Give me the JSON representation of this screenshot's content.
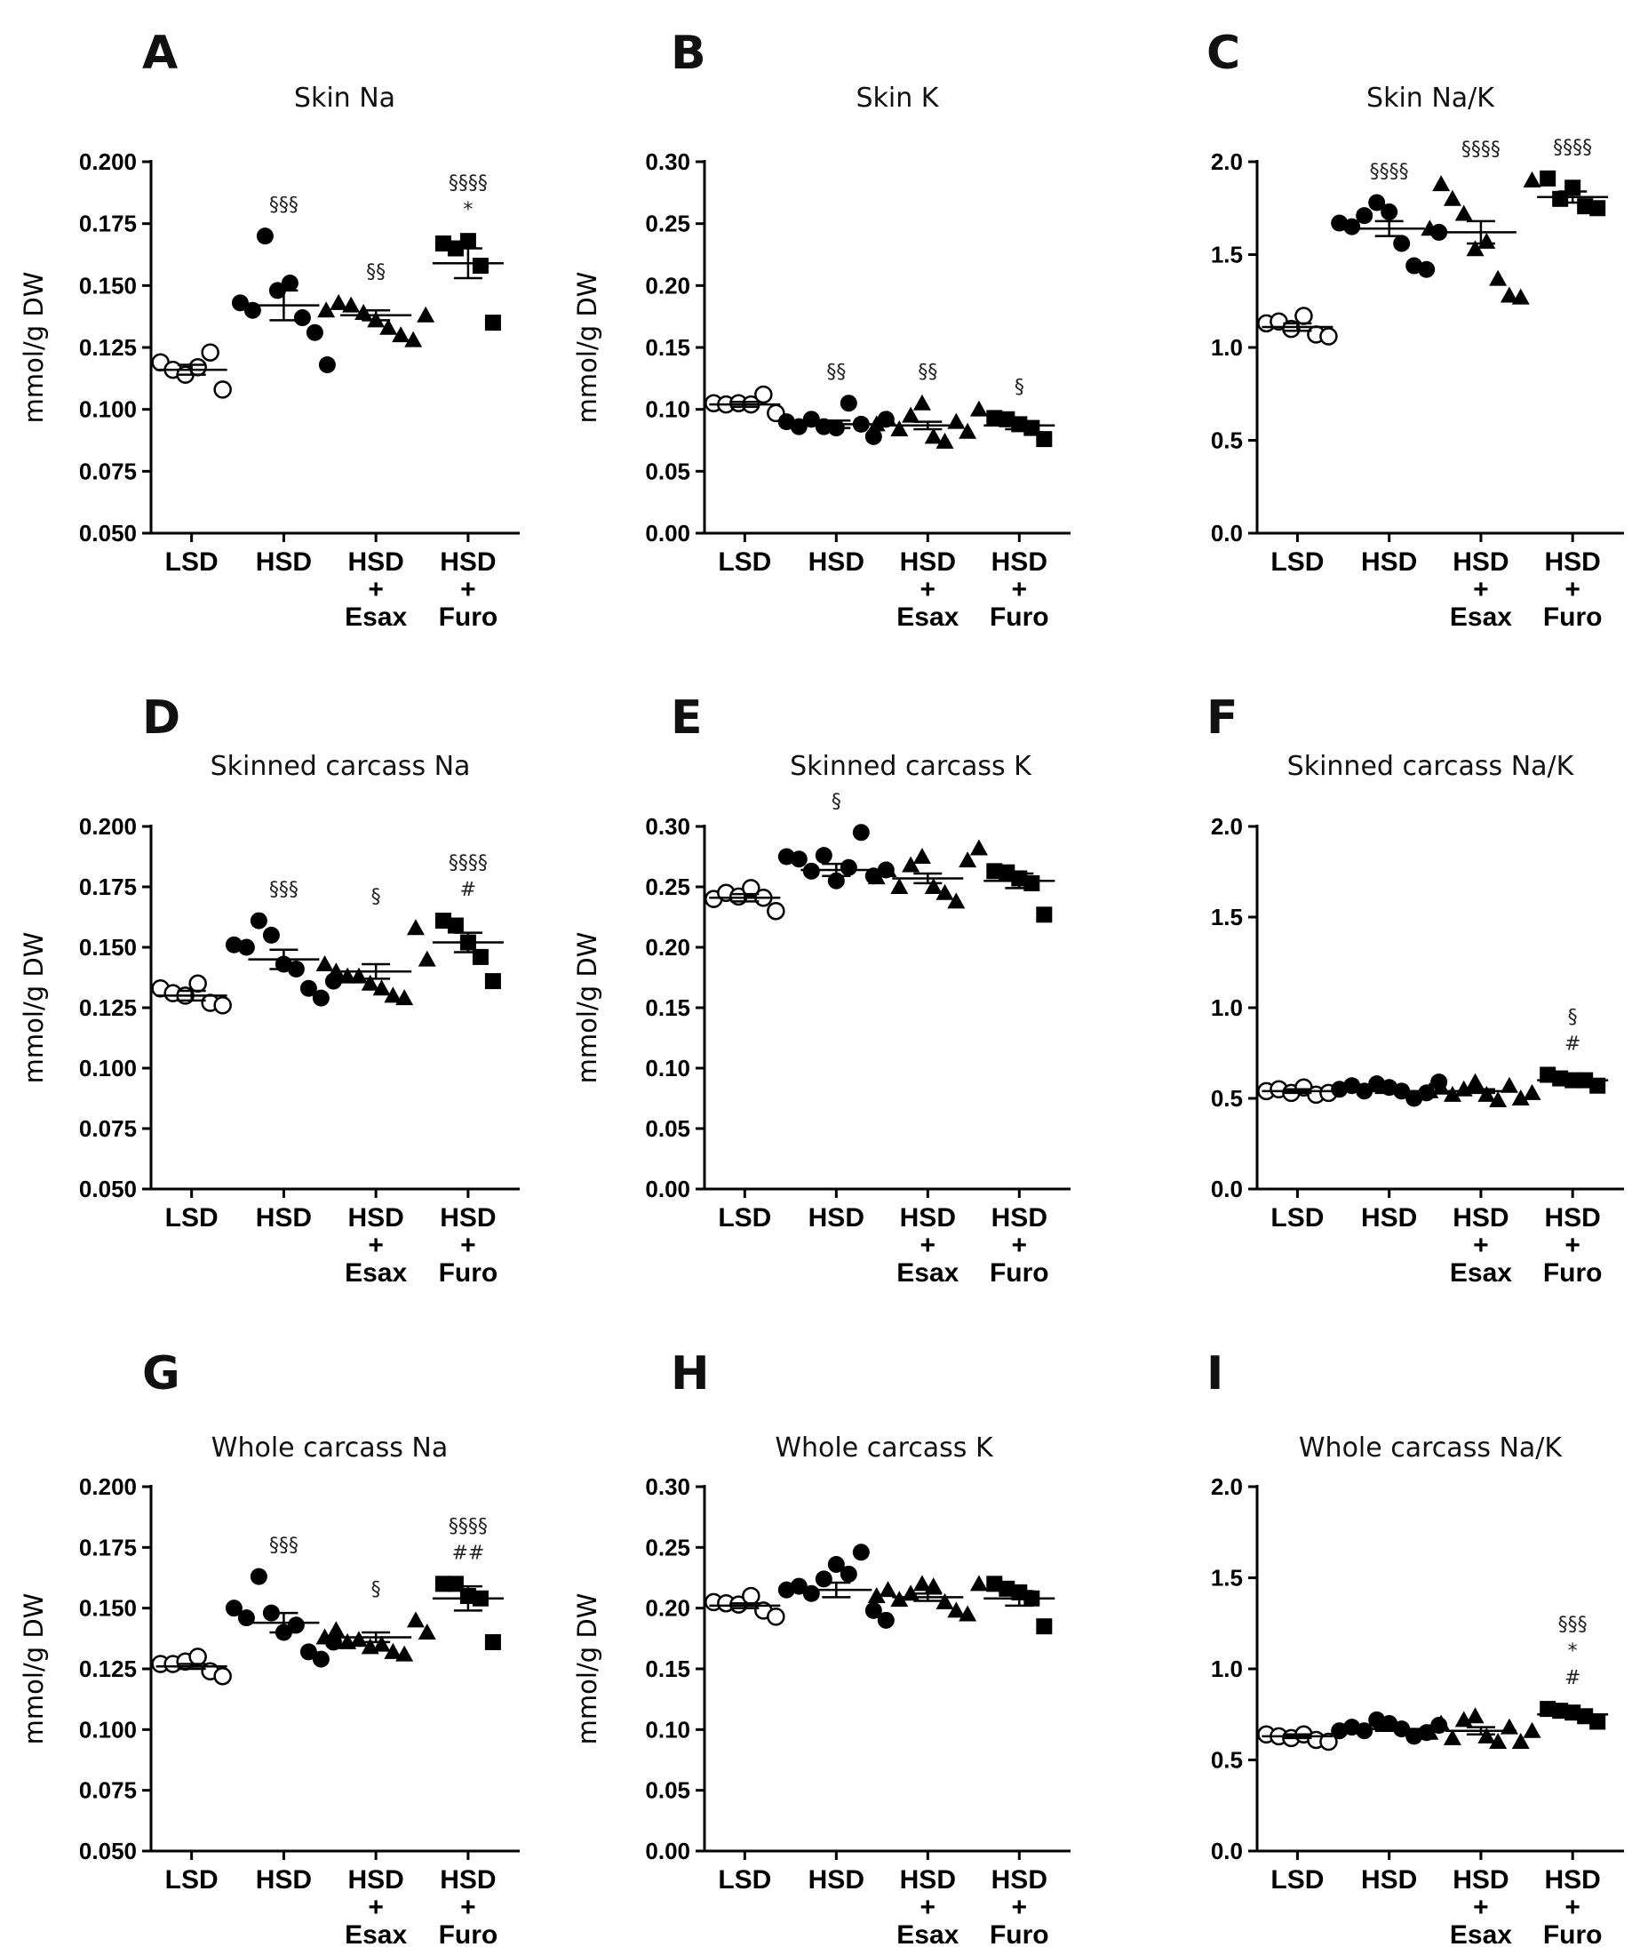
{
  "categories": [
    [
      "LSD"
    ],
    [
      "HSD"
    ],
    [
      "HSD",
      "+",
      "Esax"
    ],
    [
      "HSD",
      "+",
      "Furo"
    ]
  ],
  "chart_data": [
    {
      "panel": "A",
      "title": "Skin Na",
      "type": "scatter",
      "ylabel": "mmol/g DW",
      "ylim": [
        0.05,
        0.2
      ],
      "yticks": [
        "0.050",
        "0.075",
        "0.100",
        "0.125",
        "0.150",
        "0.175",
        "0.200"
      ],
      "groups": [
        {
          "points": [
            0.119,
            0.116,
            0.114,
            0.117,
            0.123,
            0.108
          ],
          "mean": 0.116,
          "sem": 0.002,
          "sig": []
        },
        {
          "points": [
            0.143,
            0.14,
            0.17,
            0.148,
            0.151,
            0.137,
            0.131,
            0.118
          ],
          "mean": 0.142,
          "sem": 0.006,
          "sig": [
            "§§§"
          ]
        },
        {
          "points": [
            0.14,
            0.143,
            0.142,
            0.139,
            0.136,
            0.133,
            0.13,
            0.128,
            0.138
          ],
          "mean": 0.138,
          "sem": 0.002,
          "sig": [
            "§§"
          ]
        },
        {
          "points": [
            0.167,
            0.165,
            0.168,
            0.158,
            0.135
          ],
          "mean": 0.159,
          "sem": 0.006,
          "sig": [
            "§§§§",
            "*"
          ]
        }
      ]
    },
    {
      "panel": "B",
      "title": "Skin K",
      "type": "scatter",
      "ylabel": "mmol/g DW",
      "ylim": [
        0,
        0.3
      ],
      "yticks": [
        "0.00",
        "0.05",
        "0.10",
        "0.15",
        "0.20",
        "0.25",
        "0.30"
      ],
      "groups": [
        {
          "points": [
            0.105,
            0.104,
            0.105,
            0.104,
            0.112,
            0.097
          ],
          "mean": 0.104,
          "sem": 0.002,
          "sig": []
        },
        {
          "points": [
            0.09,
            0.086,
            0.092,
            0.086,
            0.085,
            0.105,
            0.088,
            0.078,
            0.092
          ],
          "mean": 0.088,
          "sem": 0.003,
          "sig": [
            "§§"
          ]
        },
        {
          "points": [
            0.088,
            0.092,
            0.084,
            0.095,
            0.105,
            0.078,
            0.074,
            0.09,
            0.082,
            0.1
          ],
          "mean": 0.087,
          "sem": 0.003,
          "sig": [
            "§§"
          ]
        },
        {
          "points": [
            0.093,
            0.092,
            0.088,
            0.085,
            0.076
          ],
          "mean": 0.087,
          "sem": 0.003,
          "sig": [
            "§"
          ]
        }
      ]
    },
    {
      "panel": "C",
      "title": "Skin Na/K",
      "type": "scatter",
      "ylabel": "",
      "ylim": [
        0,
        2
      ],
      "yticks": [
        "0.0",
        "0.5",
        "1.0",
        "1.5",
        "2.0"
      ],
      "groups": [
        {
          "points": [
            1.13,
            1.14,
            1.1,
            1.17,
            1.07,
            1.06
          ],
          "mean": 1.11,
          "sem": 0.02,
          "sig": []
        },
        {
          "points": [
            1.67,
            1.65,
            1.71,
            1.78,
            1.73,
            1.56,
            1.44,
            1.42,
            1.62
          ],
          "mean": 1.64,
          "sem": 0.04,
          "sig": [
            "§§§§"
          ]
        },
        {
          "points": [
            1.64,
            1.88,
            1.8,
            1.72,
            1.53,
            1.57,
            1.37,
            1.28,
            1.27,
            1.9
          ],
          "mean": 1.62,
          "sem": 0.06,
          "sig": [
            "§§§§"
          ]
        },
        {
          "points": [
            1.91,
            1.8,
            1.86,
            1.76,
            1.75
          ],
          "mean": 1.81,
          "sem": 0.03,
          "sig": [
            "§§§§"
          ]
        }
      ]
    },
    {
      "panel": "D",
      "title": "Skinned carcass Na",
      "type": "scatter",
      "ylabel": "mmol/g DW",
      "ylim": [
        0.05,
        0.2
      ],
      "yticks": [
        "0.050",
        "0.075",
        "0.100",
        "0.125",
        "0.150",
        "0.175",
        "0.200"
      ],
      "groups": [
        {
          "points": [
            0.133,
            0.131,
            0.13,
            0.135,
            0.127,
            0.126
          ],
          "mean": 0.13,
          "sem": 0.002,
          "sig": []
        },
        {
          "points": [
            0.151,
            0.15,
            0.161,
            0.155,
            0.143,
            0.141,
            0.133,
            0.129,
            0.136
          ],
          "mean": 0.145,
          "sem": 0.004,
          "sig": [
            "§§§"
          ]
        },
        {
          "points": [
            0.143,
            0.14,
            0.138,
            0.138,
            0.135,
            0.133,
            0.13,
            0.129,
            0.158,
            0.145
          ],
          "mean": 0.14,
          "sem": 0.003,
          "sig": [
            "§"
          ]
        },
        {
          "points": [
            0.161,
            0.159,
            0.152,
            0.146,
            0.136
          ],
          "mean": 0.152,
          "sem": 0.004,
          "sig": [
            "§§§§",
            "#"
          ]
        }
      ]
    },
    {
      "panel": "E",
      "title": "Skinned carcass K",
      "type": "scatter",
      "ylabel": "mmol/g DW",
      "ylim": [
        0,
        0.3
      ],
      "yticks": [
        "0.00",
        "0.05",
        "0.10",
        "0.15",
        "0.20",
        "0.25",
        "0.30"
      ],
      "groups": [
        {
          "points": [
            0.24,
            0.245,
            0.242,
            0.249,
            0.241,
            0.23
          ],
          "mean": 0.241,
          "sem": 0.003,
          "sig": []
        },
        {
          "points": [
            0.275,
            0.273,
            0.263,
            0.276,
            0.255,
            0.266,
            0.295,
            0.259,
            0.264
          ],
          "mean": 0.264,
          "sem": 0.005,
          "sig": [
            "§"
          ]
        },
        {
          "points": [
            0.258,
            0.264,
            0.25,
            0.268,
            0.275,
            0.25,
            0.245,
            0.238,
            0.272,
            0.282
          ],
          "mean": 0.257,
          "sem": 0.004,
          "sig": []
        },
        {
          "points": [
            0.263,
            0.262,
            0.257,
            0.253,
            0.227
          ],
          "mean": 0.255,
          "sem": 0.006,
          "sig": []
        }
      ]
    },
    {
      "panel": "F",
      "title": "Skinned carcass Na/K",
      "type": "scatter",
      "ylabel": "",
      "ylim": [
        0,
        2
      ],
      "yticks": [
        "0.0",
        "0.5",
        "1.0",
        "1.5",
        "2.0"
      ],
      "groups": [
        {
          "points": [
            0.54,
            0.55,
            0.53,
            0.56,
            0.52,
            0.53
          ],
          "mean": 0.54,
          "sem": 0.01,
          "sig": []
        },
        {
          "points": [
            0.55,
            0.57,
            0.54,
            0.58,
            0.56,
            0.54,
            0.5,
            0.53,
            0.59
          ],
          "mean": 0.54,
          "sem": 0.01,
          "sig": []
        },
        {
          "points": [
            0.54,
            0.56,
            0.52,
            0.55,
            0.59,
            0.52,
            0.49,
            0.57,
            0.5,
            0.53
          ],
          "mean": 0.54,
          "sem": 0.01,
          "sig": []
        },
        {
          "points": [
            0.63,
            0.61,
            0.6,
            0.6,
            0.57
          ],
          "mean": 0.6,
          "sem": 0.01,
          "sig": [
            "§",
            "#"
          ]
        }
      ]
    },
    {
      "panel": "G",
      "title": "Whole carcass Na",
      "type": "scatter",
      "ylabel": "mmol/g DW",
      "ylim": [
        0.05,
        0.2
      ],
      "yticks": [
        "0.050",
        "0.075",
        "0.100",
        "0.125",
        "0.150",
        "0.175",
        "0.200"
      ],
      "groups": [
        {
          "points": [
            0.127,
            0.127,
            0.128,
            0.13,
            0.124,
            0.122
          ],
          "mean": 0.126,
          "sem": 0.001,
          "sig": []
        },
        {
          "points": [
            0.15,
            0.146,
            0.163,
            0.148,
            0.14,
            0.143,
            0.132,
            0.129,
            0.136
          ],
          "mean": 0.144,
          "sem": 0.004,
          "sig": [
            "§§§"
          ]
        },
        {
          "points": [
            0.138,
            0.141,
            0.136,
            0.137,
            0.134,
            0.135,
            0.132,
            0.131,
            0.145,
            0.14
          ],
          "mean": 0.138,
          "sem": 0.002,
          "sig": [
            "§"
          ]
        },
        {
          "points": [
            0.16,
            0.16,
            0.155,
            0.154,
            0.136
          ],
          "mean": 0.154,
          "sem": 0.005,
          "sig": [
            "§§§§",
            "##"
          ]
        }
      ]
    },
    {
      "panel": "H",
      "title": "Whole carcass K",
      "type": "scatter",
      "ylabel": "mmol/g DW",
      "ylim": [
        0,
        0.3
      ],
      "yticks": [
        "0.00",
        "0.05",
        "0.10",
        "0.15",
        "0.20",
        "0.25",
        "0.30"
      ],
      "groups": [
        {
          "points": [
            0.205,
            0.204,
            0.203,
            0.21,
            0.198,
            0.193
          ],
          "mean": 0.202,
          "sem": 0.002,
          "sig": []
        },
        {
          "points": [
            0.215,
            0.218,
            0.212,
            0.224,
            0.236,
            0.228,
            0.246,
            0.198,
            0.19
          ],
          "mean": 0.215,
          "sem": 0.006,
          "sig": []
        },
        {
          "points": [
            0.21,
            0.215,
            0.207,
            0.212,
            0.22,
            0.218,
            0.205,
            0.198,
            0.195,
            0.22
          ],
          "mean": 0.209,
          "sem": 0.003,
          "sig": []
        },
        {
          "points": [
            0.22,
            0.216,
            0.213,
            0.208,
            0.185
          ],
          "mean": 0.208,
          "sem": 0.006,
          "sig": []
        }
      ]
    },
    {
      "panel": "I",
      "title": "Whole carcass Na/K",
      "type": "scatter",
      "ylabel": "",
      "ylim": [
        0,
        2
      ],
      "yticks": [
        "0.0",
        "0.5",
        "1.0",
        "1.5",
        "2.0"
      ],
      "groups": [
        {
          "points": [
            0.64,
            0.63,
            0.62,
            0.64,
            0.61,
            0.6
          ],
          "mean": 0.63,
          "sem": 0.01,
          "sig": []
        },
        {
          "points": [
            0.66,
            0.68,
            0.66,
            0.72,
            0.7,
            0.67,
            0.63,
            0.65,
            0.69
          ],
          "mean": 0.67,
          "sem": 0.01,
          "sig": []
        },
        {
          "points": [
            0.65,
            0.7,
            0.62,
            0.72,
            0.74,
            0.63,
            0.6,
            0.68,
            0.6,
            0.66
          ],
          "mean": 0.66,
          "sem": 0.02,
          "sig": []
        },
        {
          "points": [
            0.78,
            0.77,
            0.76,
            0.74,
            0.71
          ],
          "mean": 0.75,
          "sem": 0.01,
          "sig": [
            "§§§",
            "*",
            "#"
          ]
        }
      ]
    }
  ]
}
